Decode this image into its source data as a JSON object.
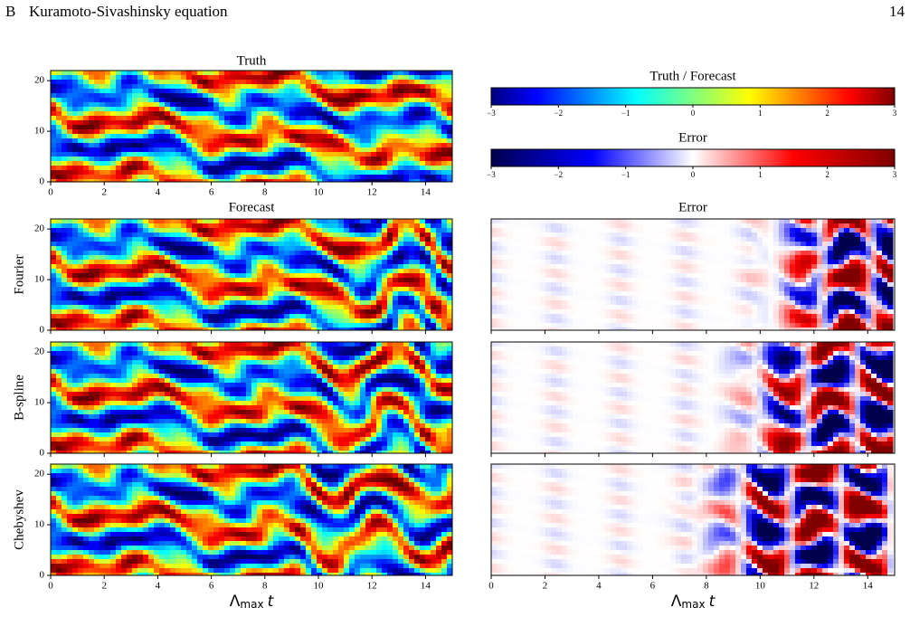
{
  "header": {
    "section": "B",
    "title": "Kuramoto-Sivashinsky equation",
    "page": "14"
  },
  "figure": {
    "xlim": [
      0,
      15
    ],
    "xticks": [
      0,
      2,
      4,
      6,
      8,
      10,
      12,
      14
    ],
    "ylim": [
      0,
      22
    ],
    "yticks": [
      0,
      10,
      20
    ],
    "xlabel": {
      "symbol": "Λ",
      "subscript": "max",
      "variable": "t"
    },
    "titles": {
      "truth": "Truth",
      "forecast": "Forecast",
      "error": "Error"
    },
    "rows": [
      "Fourier",
      "B-spline",
      "Chebyshev"
    ],
    "colorbars": [
      {
        "label": "Truth / Forecast",
        "colormap": "jet",
        "lim": [
          -3,
          3
        ],
        "ticks": [
          {
            "value": -3,
            "label": "−3"
          },
          {
            "value": -2,
            "label": "−2"
          },
          {
            "value": -1,
            "label": "−1"
          },
          0,
          1,
          2,
          3
        ]
      },
      {
        "label": "Error",
        "colormap": "seismic",
        "lim": [
          -3,
          3
        ],
        "ticks": [
          {
            "value": -3,
            "label": "−3"
          },
          {
            "value": -2,
            "label": "−2"
          },
          {
            "value": -1,
            "label": "−1"
          },
          0,
          1,
          2,
          3
        ]
      }
    ]
  }
}
